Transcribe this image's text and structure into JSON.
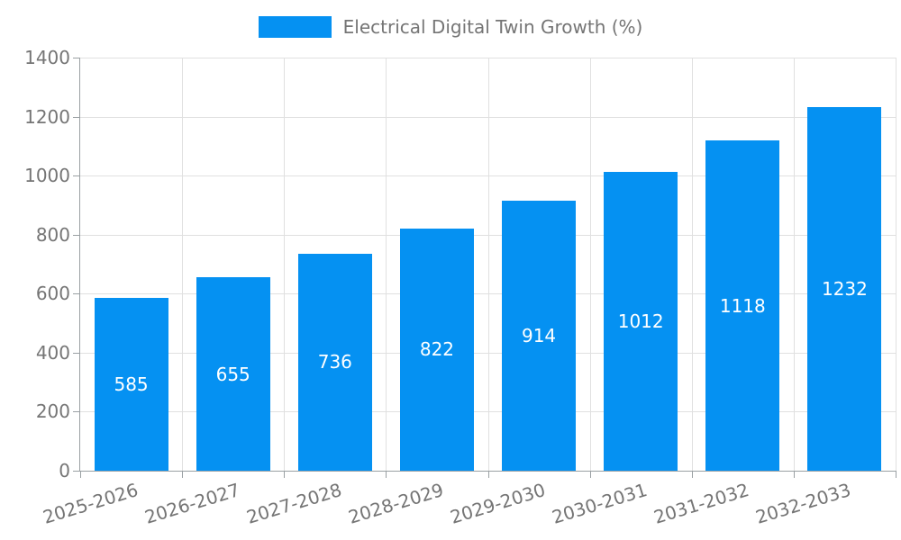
{
  "background": "#ffffff",
  "legend": {
    "position": "top-center",
    "entries": [
      "Electrical Digital Twin Growth (%)"
    ]
  },
  "chart_data": {
    "type": "bar",
    "title": "",
    "xlabel": "",
    "ylabel": "",
    "categories": [
      "2025-2026",
      "2026-2027",
      "2027-2028",
      "2028-2029",
      "2029-2030",
      "2030-2031",
      "2031-2032",
      "2032-2033"
    ],
    "series": [
      {
        "name": "Electrical Digital Twin Growth (%)",
        "values": [
          585,
          655,
          736,
          822,
          914,
          1012,
          1118,
          1232
        ],
        "color": "#0591f2",
        "value_label_color": "#ffffff"
      }
    ],
    "ylim": [
      0,
      1400
    ],
    "yticks": [
      0,
      200,
      400,
      600,
      800,
      1000,
      1200,
      1400
    ],
    "grid": true,
    "x_label_rotation_deg": 17,
    "legend_position": "top-center",
    "text_color": "#757575",
    "gridline_color": "#e0e0e0",
    "axis_line_color": "#9aa0a3"
  }
}
